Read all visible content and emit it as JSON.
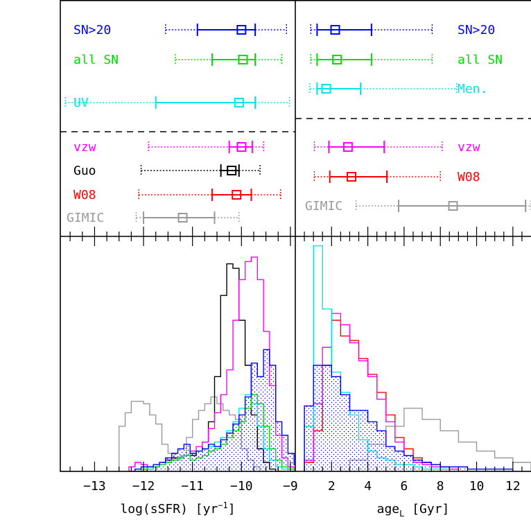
{
  "chart_data": [
    {
      "panel": "top-left",
      "type": "errorbar",
      "xlim": [
        -13.7,
        -8.9
      ],
      "rows": [
        {
          "label": "SN>20",
          "color": "#0000ff",
          "median": -10.0,
          "q1": -10.9,
          "q3": -9.72,
          "min": -11.55,
          "max": -9.08
        },
        {
          "label": "all SN",
          "color": "#00dd00",
          "median": -9.97,
          "q1": -10.6,
          "q3": -9.72,
          "min": -11.35,
          "max": -9.18
        },
        {
          "label": "UV",
          "color": "#00e5e5",
          "median": -10.05,
          "q1": -11.75,
          "q3": -9.72,
          "min": -13.6,
          "max": -9.02
        },
        {
          "label": "vzw",
          "color": "#ff00ff",
          "median": -10.0,
          "q1": -10.25,
          "q3": -9.78,
          "min": -11.9,
          "max": -9.55
        },
        {
          "label": "Guo",
          "color": "#000000",
          "median": -10.2,
          "q1": -10.42,
          "q3": -10.05,
          "min": -12.05,
          "max": -9.62
        },
        {
          "label": "W08",
          "color": "#ff0000",
          "median": -10.1,
          "q1": -10.6,
          "q3": -9.8,
          "min": -12.1,
          "max": -9.2
        },
        {
          "label": "GIMIC",
          "color": "#999999",
          "median": -11.2,
          "q1": -12.0,
          "q3": -10.55,
          "min": -12.15,
          "max": -10.05
        }
      ]
    },
    {
      "panel": "top-right",
      "type": "errorbar",
      "xlim": [
        0,
        13
      ],
      "rows": [
        {
          "label": "SN>20",
          "color": "#0000ff",
          "median": 2.2,
          "q1": 1.2,
          "q3": 4.2,
          "min": 0.85,
          "max": 7.55
        },
        {
          "label": "all SN",
          "color": "#00dd00",
          "median": 2.3,
          "q1": 1.2,
          "q3": 4.2,
          "min": 0.85,
          "max": 7.55
        },
        {
          "label": "Men.",
          "color": "#00e5e5",
          "median": 1.7,
          "q1": 1.2,
          "q3": 3.6,
          "min": 0.8,
          "max": 8.9
        },
        {
          "label": "vzw",
          "color": "#ff00ff",
          "median": 2.9,
          "q1": 1.85,
          "q3": 4.9,
          "min": 1.05,
          "max": 8.1
        },
        {
          "label": "W08",
          "color": "#ff0000",
          "median": 3.1,
          "q1": 1.9,
          "q3": 5.05,
          "min": 1.05,
          "max": 8.0
        },
        {
          "label": "GIMIC",
          "color": "#999999",
          "median": 8.7,
          "q1": 5.7,
          "q3": 12.7,
          "min": 3.35,
          "max": 13.0
        }
      ]
    },
    {
      "panel": "bottom-left",
      "type": "histogram",
      "xlabel": "log(sSFR) [yr",
      "xlabel_sup": "−1",
      "xlabel_end": "]",
      "xlim": [
        -13.7,
        -8.9
      ],
      "ylim": [
        0,
        1
      ],
      "xticks": [
        -13,
        -12,
        -11,
        -10,
        -9
      ],
      "xtick_labels": [
        "−13",
        "−12",
        "−11",
        "−10",
        "−9"
      ],
      "bin_start": -12.3,
      "bin_width": 0.125,
      "series": [
        {
          "name": "SN>20",
          "color": "#0000ff",
          "hatched": true,
          "values": [
            0.0,
            0.01,
            0.02,
            0.02,
            0.03,
            0.04,
            0.06,
            0.08,
            0.1,
            0.12,
            0.08,
            0.09,
            0.1,
            0.12,
            0.11,
            0.14,
            0.17,
            0.21,
            0.25,
            0.33,
            0.48,
            0.42,
            0.54,
            0.47,
            0.22,
            0.16,
            0.08,
            0.03,
            0.01,
            0.0
          ]
        },
        {
          "name": "all SN",
          "color": "#00dd00",
          "hatched": false,
          "values": [
            0.0,
            0.0,
            0.01,
            0.02,
            0.02,
            0.03,
            0.04,
            0.05,
            0.06,
            0.07,
            0.05,
            0.06,
            0.07,
            0.09,
            0.1,
            0.12,
            0.15,
            0.18,
            0.22,
            0.28,
            0.34,
            0.3,
            0.2,
            0.1,
            0.05,
            0.02,
            0.01,
            0.0,
            0.0,
            0.0
          ]
        },
        {
          "name": "UV",
          "color": "#00e5e5",
          "hatched": false,
          "values": [
            0.0,
            0.0,
            0.01,
            0.01,
            0.02,
            0.03,
            0.04,
            0.05,
            0.06,
            0.07,
            0.08,
            0.09,
            0.1,
            0.11,
            0.13,
            0.15,
            0.18,
            0.22,
            0.28,
            0.34,
            0.3,
            0.2,
            0.1,
            0.05,
            0.02,
            0.01,
            0.0,
            0.0,
            0.0,
            0.0
          ]
        },
        {
          "name": "vzw",
          "color": "#ff00ff",
          "hatched": false,
          "values": [
            0.02,
            0.04,
            0.03,
            0.02,
            0.02,
            0.03,
            0.04,
            0.05,
            0.06,
            0.07,
            0.09,
            0.11,
            0.13,
            0.19,
            0.26,
            0.34,
            0.45,
            0.67,
            0.85,
            0.93,
            0.95,
            0.85,
            0.62,
            0.38,
            0.16,
            0.06,
            0.02,
            0.01,
            0.0,
            0.0
          ]
        },
        {
          "name": "Guo",
          "color": "#000000",
          "hatched": false,
          "values": [
            0.0,
            0.0,
            0.0,
            0.01,
            0.02,
            0.03,
            0.05,
            0.06,
            0.06,
            0.07,
            0.07,
            0.09,
            0.13,
            0.22,
            0.42,
            0.78,
            0.92,
            0.9,
            0.67,
            0.47,
            0.25,
            0.1,
            0.04,
            0.01,
            0.0,
            0.0,
            0.0,
            0.0,
            0.0,
            0.0
          ]
        }
      ],
      "extra_series": [
        {
          "name": "GIMIC",
          "color": "#999999",
          "bin_start": -12.5,
          "bin_width": 0.125,
          "values": [
            0.2,
            0.26,
            0.31,
            0.31,
            0.3,
            0.25,
            0.21,
            0.12,
            0.08,
            0.05,
            0.07,
            0.15,
            0.23,
            0.27,
            0.3,
            0.33,
            0.3,
            0.27,
            0.25,
            0.23,
            0.1,
            0.05,
            0.02,
            0.0
          ]
        }
      ]
    },
    {
      "panel": "bottom-right",
      "type": "histogram",
      "xlabel": "age",
      "xlabel_sub": "L",
      "xlabel_end": " [Gyr]",
      "xlim": [
        0,
        13
      ],
      "ylim": [
        0,
        1
      ],
      "xticks": [
        2,
        4,
        6,
        8,
        10,
        12
      ],
      "xtick_labels": [
        "2",
        "4",
        "6",
        "8",
        "10",
        "12"
      ],
      "bin_start": 0.5,
      "bin_width": 0.5,
      "series": [
        {
          "name": "SN>20",
          "color": "#0000ff",
          "hatched": true,
          "values": [
            0.29,
            0.47,
            0.47,
            0.42,
            0.34,
            0.27,
            0.27,
            0.22,
            0.18,
            0.11,
            0.09,
            0.07,
            0.05,
            0.04,
            0.03,
            0.02,
            0.02,
            0.02,
            0.01,
            0.01,
            0.01,
            0.01,
            0.01
          ]
        },
        {
          "name": "Men.",
          "color": "#00e5e5",
          "hatched": false,
          "values": [
            0.2,
            1.0,
            0.72,
            0.44,
            0.35,
            0.25,
            0.14,
            0.09,
            0.06,
            0.05,
            0.03,
            0.03,
            0.02,
            0.01,
            0.01,
            0.01,
            0.0,
            0.0,
            0.0,
            0.0,
            0.0,
            0.0,
            0.0
          ]
        },
        {
          "name": "vzw",
          "color": "#ff00ff",
          "hatched": false,
          "values": [
            0.05,
            0.3,
            0.55,
            0.7,
            0.65,
            0.57,
            0.49,
            0.42,
            0.32,
            0.22,
            0.13,
            0.07,
            0.04,
            0.03,
            0.02,
            0.01,
            0.01,
            0.0,
            0.0,
            0.0,
            0.0,
            0.0,
            0.0
          ]
        },
        {
          "name": "W08",
          "color": "#ff0000",
          "hatched": false,
          "values": [
            0.04,
            0.18,
            0.47,
            0.67,
            0.6,
            0.58,
            0.5,
            0.43,
            0.35,
            0.25,
            0.15,
            0.1,
            0.06,
            0.04,
            0.03,
            0.02,
            0.01,
            0.0,
            0.0,
            0.0,
            0.0,
            0.0,
            0.0
          ]
        }
      ],
      "extra_series": [
        {
          "name": "GIMIC",
          "color": "#999999",
          "bin_start": 3.0,
          "bin_width": 1.0,
          "values": [
            0.05,
            0.12,
            0.2,
            0.28,
            0.23,
            0.18,
            0.13,
            0.09,
            0.06,
            0.04
          ]
        }
      ]
    }
  ]
}
